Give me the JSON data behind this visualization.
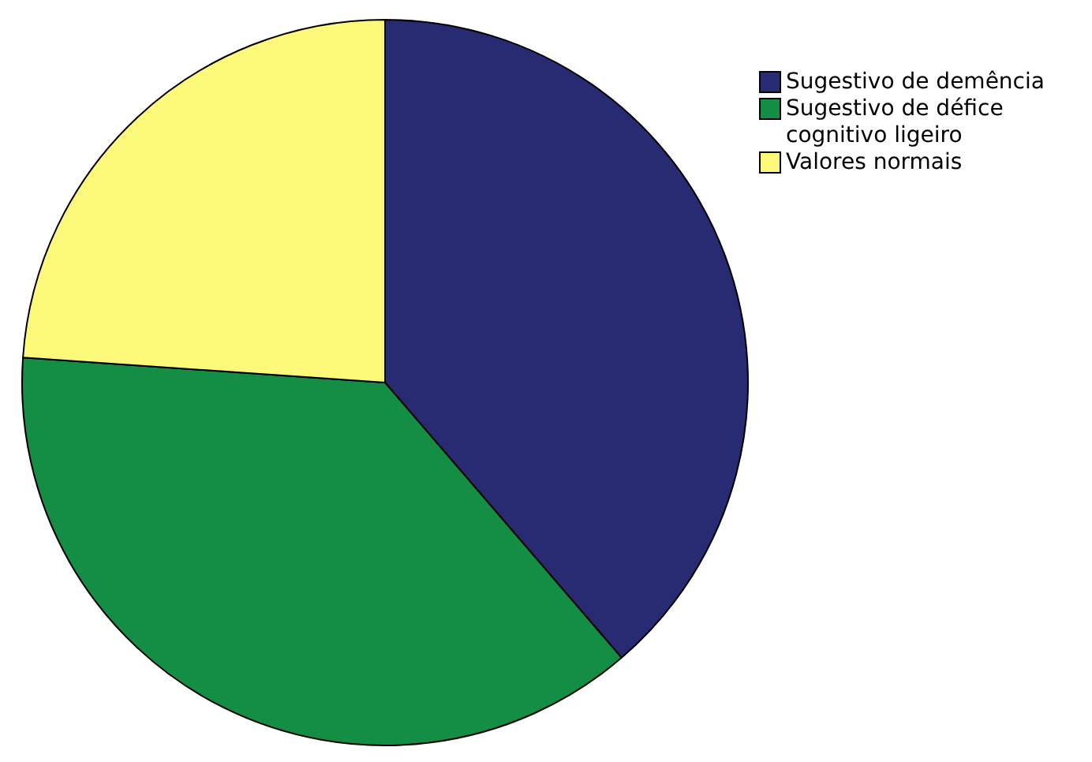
{
  "chart_data": {
    "type": "pie",
    "categories": [
      "Sugestivo de demência",
      "Sugestivo de défice cognitivo ligeiro",
      "Valores normais"
    ],
    "values": [
      38.7,
      37.4,
      23.9
    ],
    "colors": [
      "#282a72",
      "#138e44",
      "#fbf87a"
    ],
    "legend": "top right"
  }
}
